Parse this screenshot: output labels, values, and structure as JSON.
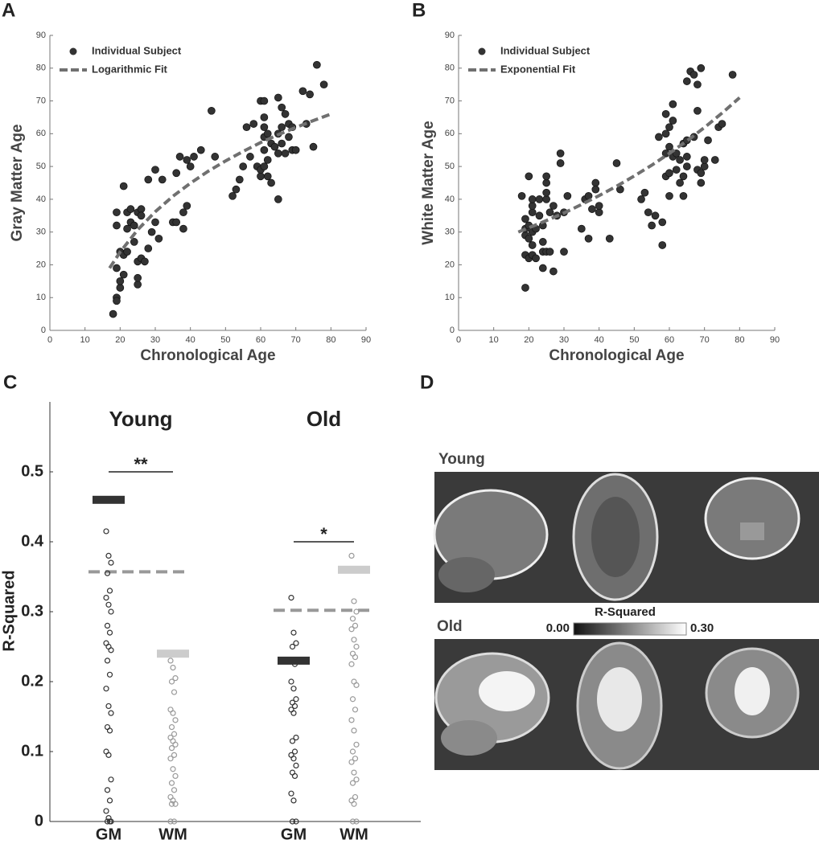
{
  "chart_data": [
    {
      "type": "scatter",
      "panel_label": "A",
      "xlabel": "Chronological Age",
      "ylabel": "Gray Matter Age",
      "xlim": [
        0,
        90
      ],
      "ylim": [
        0,
        90
      ],
      "xticks": [
        0,
        10,
        20,
        30,
        40,
        50,
        60,
        70,
        80,
        90
      ],
      "yticks": [
        0,
        10,
        20,
        30,
        40,
        50,
        60,
        70,
        80,
        90
      ],
      "legend": "upper left",
      "series": [
        {
          "name": "Individual Subject",
          "color": "#333333",
          "line_style": "none",
          "x": [
            18,
            19,
            19,
            20,
            20,
            19,
            19,
            19,
            21,
            20,
            21,
            22,
            21,
            22,
            22,
            23,
            23,
            24,
            24,
            25,
            25,
            25,
            25,
            26,
            26,
            26,
            27,
            28,
            28,
            29,
            30,
            30,
            31,
            32,
            35,
            36,
            36,
            37,
            38,
            38,
            39,
            39,
            40,
            41,
            43,
            46,
            47,
            52,
            53,
            54,
            55,
            56,
            57,
            58,
            59,
            60,
            60,
            60,
            61,
            61,
            61,
            61,
            61,
            61,
            62,
            62,
            62,
            63,
            63,
            64,
            65,
            65,
            65,
            65,
            66,
            66,
            66,
            67,
            67,
            68,
            68,
            69,
            69,
            70,
            72,
            73,
            74,
            75,
            76,
            78
          ],
          "values": [
            5,
            10,
            9,
            13,
            15,
            19,
            32,
            36,
            44,
            24,
            23,
            24,
            17,
            31,
            36,
            37,
            33,
            32,
            27,
            14,
            16,
            21,
            36,
            37,
            22,
            35,
            21,
            25,
            46,
            30,
            33,
            49,
            28,
            46,
            33,
            33,
            48,
            53,
            36,
            31,
            38,
            52,
            50,
            53,
            55,
            67,
            53,
            41,
            43,
            46,
            50,
            62,
            53,
            63,
            50,
            47,
            49,
            70,
            50,
            55,
            59,
            62,
            65,
            70,
            60,
            52,
            47,
            45,
            57,
            56,
            40,
            54,
            60,
            71,
            57,
            62,
            68,
            54,
            66,
            59,
            63,
            62,
            55,
            55,
            73,
            63,
            72,
            56,
            81,
            75
          ]
        },
        {
          "name": "Logarithmic Fit",
          "color": "#707070",
          "line_style": "dashed",
          "x": [
            17,
            20,
            25,
            30,
            35,
            40,
            45,
            50,
            55,
            60,
            65,
            70,
            75,
            80
          ],
          "values": [
            19.0,
            23.9,
            30.7,
            36.2,
            40.9,
            44.9,
            48.5,
            51.7,
            54.6,
            57.3,
            59.7,
            61.9,
            64.0,
            66.0
          ]
        }
      ]
    },
    {
      "type": "scatter",
      "panel_label": "B",
      "xlabel": "Chronological Age",
      "ylabel": "White Matter Age",
      "xlim": [
        0,
        90
      ],
      "ylim": [
        0,
        90
      ],
      "xticks": [
        0,
        10,
        20,
        30,
        40,
        50,
        60,
        70,
        80,
        90
      ],
      "yticks": [
        0,
        10,
        20,
        30,
        40,
        50,
        60,
        70,
        80,
        90
      ],
      "legend": "upper left",
      "series": [
        {
          "name": "Individual Subject",
          "color": "#333333",
          "line_style": "none",
          "x": [
            18,
            19,
            19,
            19,
            19,
            19,
            20,
            20,
            20,
            20,
            21,
            21,
            21,
            21,
            21,
            21,
            22,
            22,
            23,
            23,
            24,
            24,
            24,
            24,
            25,
            25,
            25,
            25,
            25,
            26,
            26,
            27,
            27,
            28,
            29,
            29,
            30,
            30,
            31,
            35,
            36,
            37,
            37,
            38,
            39,
            39,
            40,
            40,
            43,
            45,
            46,
            52,
            53,
            54,
            55,
            56,
            57,
            58,
            58,
            59,
            59,
            59,
            59,
            60,
            60,
            60,
            60,
            61,
            61,
            61,
            62,
            62,
            63,
            63,
            64,
            64,
            64,
            65,
            65,
            65,
            65,
            66,
            67,
            67,
            68,
            68,
            68,
            69,
            69,
            69,
            70,
            70,
            71,
            73,
            74,
            75,
            78
          ],
          "values": [
            41,
            13,
            23,
            29,
            31,
            34,
            22,
            28,
            32,
            47,
            23,
            26,
            30,
            36,
            38,
            40,
            22,
            31,
            35,
            40,
            19,
            24,
            27,
            32,
            24,
            40,
            42,
            45,
            47,
            36,
            24,
            18,
            38,
            35,
            51,
            54,
            24,
            36,
            41,
            31,
            40,
            28,
            41,
            37,
            45,
            43,
            36,
            38,
            28,
            51,
            43,
            40,
            42,
            36,
            32,
            35,
            59,
            26,
            33,
            47,
            54,
            60,
            66,
            41,
            48,
            56,
            62,
            53,
            64,
            69,
            49,
            54,
            45,
            52,
            41,
            47,
            57,
            50,
            53,
            58,
            76,
            79,
            59,
            78,
            49,
            67,
            75,
            45,
            48,
            80,
            50,
            52,
            58,
            52,
            62,
            63,
            78
          ]
        },
        {
          "name": "Exponential Fit",
          "color": "#707070",
          "line_style": "dashed",
          "x": [
            17,
            20,
            25,
            30,
            35,
            40,
            45,
            50,
            55,
            60,
            65,
            70,
            75,
            80
          ],
          "values": [
            30.0,
            31.3,
            33.5,
            35.8,
            38.4,
            41.1,
            44.0,
            47.1,
            50.4,
            54.0,
            57.8,
            61.9,
            66.3,
            71.0
          ]
        }
      ]
    },
    {
      "type": "strip",
      "panel_label": "C",
      "ylabel": "R-Squared",
      "ylim": [
        0,
        0.6
      ],
      "yticks": [
        0,
        0.1,
        0.2,
        0.3,
        0.4,
        0.5
      ],
      "categories": [
        "GM",
        "WM",
        "GM",
        "WM"
      ],
      "group_labels": [
        "Young",
        "Old"
      ],
      "point_colors": [
        "#333333",
        "#9a9a9a",
        "#333333",
        "#9a9a9a"
      ],
      "mean_colors": [
        "#333333",
        "#cccccc",
        "#333333",
        "#cccccc"
      ],
      "means": [
        0.46,
        0.24,
        0.23,
        0.36
      ],
      "reference_color": "#999999",
      "reference_lines": [
        0.357,
        0.302
      ],
      "significance": [
        {
          "label": "**",
          "y": 0.5
        },
        {
          "label": "*",
          "y": 0.4
        }
      ],
      "points": [
        [
          0.415,
          0.38,
          0.37,
          0.355,
          0.33,
          0.32,
          0.31,
          0.3,
          0.28,
          0.27,
          0.255,
          0.25,
          0.245,
          0.23,
          0.21,
          0.19,
          0.165,
          0.155,
          0.135,
          0.13,
          0.1,
          0.095,
          0.06,
          0.045,
          0.03,
          0.015,
          0.005,
          0,
          0,
          0
        ],
        [
          0.23,
          0.22,
          0.205,
          0.2,
          0.185,
          0.16,
          0.155,
          0.145,
          0.135,
          0.125,
          0.12,
          0.115,
          0.11,
          0.105,
          0.095,
          0.09,
          0.075,
          0.065,
          0.055,
          0.045,
          0.035,
          0.03,
          0.025,
          0.025,
          0,
          0
        ],
        [
          0.32,
          0.27,
          0.255,
          0.25,
          0.225,
          0.2,
          0.19,
          0.175,
          0.17,
          0.165,
          0.16,
          0.155,
          0.12,
          0.115,
          0.1,
          0.095,
          0.09,
          0.08,
          0.07,
          0.065,
          0.04,
          0.03,
          0,
          0
        ],
        [
          0.38,
          0.315,
          0.3,
          0.29,
          0.28,
          0.275,
          0.26,
          0.25,
          0.24,
          0.235,
          0.225,
          0.2,
          0.195,
          0.175,
          0.16,
          0.145,
          0.13,
          0.11,
          0.1,
          0.09,
          0.085,
          0.07,
          0.06,
          0.055,
          0.035,
          0.03,
          0.025,
          0,
          0
        ]
      ]
    }
  ],
  "panel_d": {
    "panel_label": "D",
    "top_label": "Young",
    "bottom_label": "Old",
    "colorbar": {
      "title": "R-Squared",
      "min_label": "0.00",
      "max_label": "0.30"
    }
  }
}
